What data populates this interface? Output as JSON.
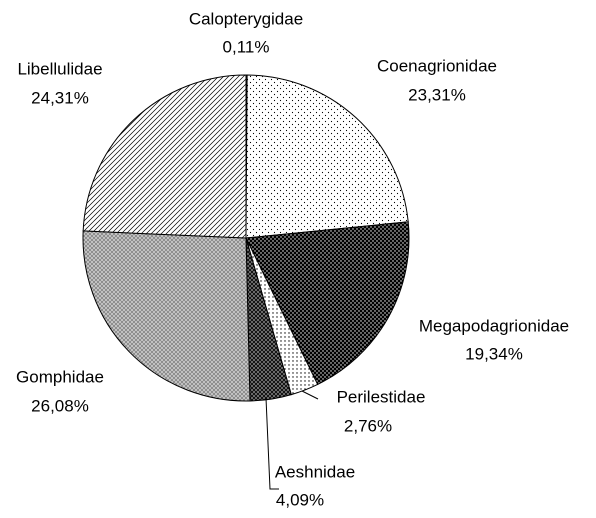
{
  "chart_data": {
    "type": "pie",
    "categories": [
      "Calopterygidae",
      "Coenagrionidae",
      "Megapodagrionidae",
      "Perilestidae",
      "Aeshnidae",
      "Gomphidae",
      "Libellulidae"
    ],
    "values": [
      0.11,
      23.31,
      19.34,
      2.76,
      4.09,
      26.08,
      24.31
    ],
    "value_labels": [
      "0,11%",
      "23,31%",
      "19,34%",
      "2,76%",
      "4,09%",
      "26,08%",
      "24,31%"
    ],
    "colors": [
      "#ffffff",
      "#ffffff",
      "#000000",
      "#ffffff",
      "#808080",
      "#c8c8c8",
      "#ffffff"
    ]
  }
}
